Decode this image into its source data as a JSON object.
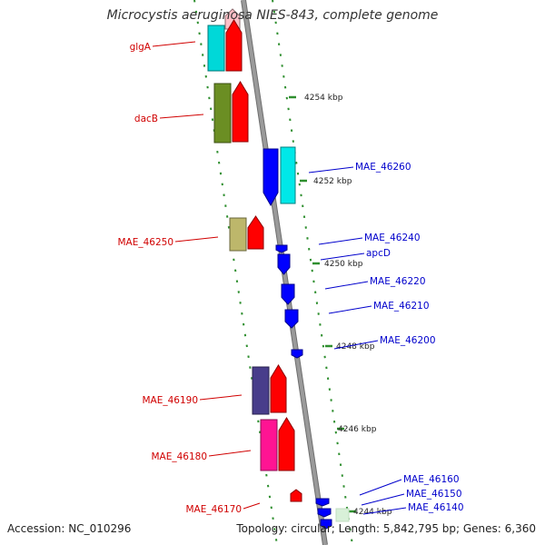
{
  "title": "Microcystis aeruginosa NIES-843, complete genome",
  "footer": {
    "accession": "Accession: NC_010296",
    "summary": "Topology: circular; Length: 5,842,795 bp; Genes: 6,360"
  },
  "colors": {
    "backbone": "#9a9a9a",
    "tick": "#2f8f2f",
    "forward_label": "#d00000",
    "reverse_label": "#0000cc"
  },
  "kbp_labels": [
    "4254 kbp",
    "4252 kbp",
    "4250 kbp",
    "4248 kbp",
    "4246 kbp",
    "4244 kbp"
  ],
  "features": [
    {
      "label": "glgA",
      "strand": "forward",
      "color": "#00d8d8"
    },
    {
      "label": "dacB",
      "strand": "forward",
      "color": "#6b8e23"
    },
    {
      "label": "MAE_46250",
      "strand": "forward",
      "color": "#bdb76b"
    },
    {
      "label": "MAE_46190",
      "strand": "forward",
      "color": "#483d8b"
    },
    {
      "label": "MAE_46180",
      "strand": "forward",
      "color": "#ff1493"
    },
    {
      "label": "MAE_46170",
      "strand": "forward",
      "color": "#ff0000"
    },
    {
      "label": "MAE_46260",
      "strand": "reverse",
      "color": "#0000ff"
    },
    {
      "label": "MAE_46240",
      "strand": "reverse",
      "color": "#0000ff"
    },
    {
      "label": "apcD",
      "strand": "reverse",
      "color": "#0000ff"
    },
    {
      "label": "MAE_46220",
      "strand": "reverse",
      "color": "#0000ff"
    },
    {
      "label": "MAE_46210",
      "strand": "reverse",
      "color": "#0000ff"
    },
    {
      "label": "MAE_46200",
      "strand": "reverse",
      "color": "#0000ff"
    },
    {
      "label": "MAE_46160",
      "strand": "reverse",
      "color": "#0000ff"
    },
    {
      "label": "MAE_46150",
      "strand": "reverse",
      "color": "#0000ff"
    },
    {
      "label": "MAE_46140",
      "strand": "reverse",
      "color": "#0000ff"
    }
  ]
}
